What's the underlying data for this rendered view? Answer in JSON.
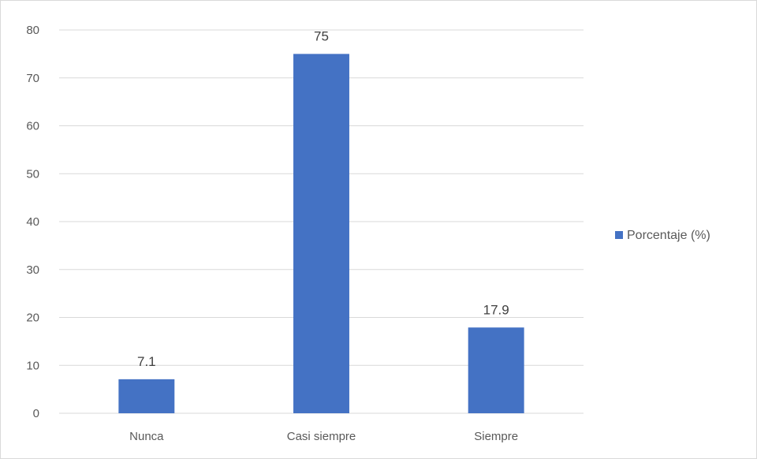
{
  "chart_data": {
    "type": "bar",
    "categories": [
      "Nunca",
      "Casi siempre",
      "Siempre"
    ],
    "series": [
      {
        "name": "Porcentaje (%)",
        "values": [
          7.1,
          75,
          17.9
        ],
        "color": "#4472c4"
      }
    ],
    "data_labels": [
      "7.1",
      "75",
      "17.9"
    ],
    "ylim": [
      0,
      80
    ],
    "yticks": [
      0,
      10,
      20,
      30,
      40,
      50,
      60,
      70,
      80
    ],
    "grid": true,
    "legend_position": "right"
  }
}
